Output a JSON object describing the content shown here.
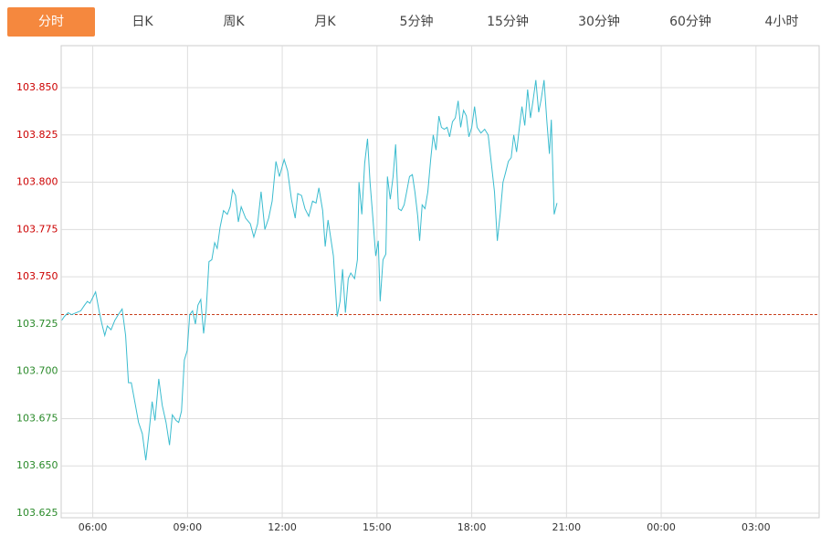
{
  "tabs": [
    "分时",
    "日K",
    "周K",
    "月K",
    "5分钟",
    "15分钟",
    "30分钟",
    "60分钟",
    "4小时"
  ],
  "active_tab": 0,
  "chart_data": {
    "type": "line",
    "color": "#3bbccf",
    "reference_line": 103.73,
    "reference_color": "#c8401e",
    "up_color": "#cc0000",
    "down_color": "#2a8a2a",
    "grid": true,
    "xlim": [
      5,
      29
    ],
    "ylim": [
      103.6226,
      103.8722
    ],
    "yticks": [
      {
        "value": 103.625,
        "label": "103.625"
      },
      {
        "value": 103.65,
        "label": "103.650"
      },
      {
        "value": 103.675,
        "label": "103.675"
      },
      {
        "value": 103.7,
        "label": "103.700"
      },
      {
        "value": 103.725,
        "label": "103.725"
      },
      {
        "value": 103.75,
        "label": "103.750"
      },
      {
        "value": 103.775,
        "label": "103.775"
      },
      {
        "value": 103.8,
        "label": "103.800"
      },
      {
        "value": 103.825,
        "label": "103.825"
      },
      {
        "value": 103.85,
        "label": "103.850"
      }
    ],
    "xticks": [
      {
        "value": 6,
        "label": "06:00"
      },
      {
        "value": 9,
        "label": "09:00"
      },
      {
        "value": 12,
        "label": "12:00"
      },
      {
        "value": 15,
        "label": "15:00"
      },
      {
        "value": 18,
        "label": "18:00"
      },
      {
        "value": 21,
        "label": "21:00"
      },
      {
        "value": 24,
        "label": "00:00"
      },
      {
        "value": 27,
        "label": "03:00"
      }
    ],
    "x": [
      5.02,
      5.1,
      5.22,
      5.33,
      5.48,
      5.62,
      5.74,
      5.83,
      5.91,
      6.0,
      6.09,
      6.2,
      6.29,
      6.38,
      6.46,
      6.58,
      6.7,
      6.81,
      6.93,
      7.04,
      7.13,
      7.22,
      7.33,
      7.45,
      7.57,
      7.68,
      7.77,
      7.88,
      7.97,
      8.09,
      8.2,
      8.32,
      8.43,
      8.52,
      8.64,
      8.72,
      8.81,
      8.9,
      8.99,
      9.07,
      9.16,
      9.25,
      9.33,
      9.42,
      9.51,
      9.59,
      9.68,
      9.77,
      9.86,
      9.94,
      10.03,
      10.14,
      10.26,
      10.35,
      10.43,
      10.52,
      10.61,
      10.7,
      10.84,
      10.99,
      11.1,
      11.22,
      11.33,
      11.45,
      11.57,
      11.68,
      11.8,
      11.91,
      12.06,
      12.17,
      12.29,
      12.41,
      12.49,
      12.61,
      12.72,
      12.84,
      12.96,
      13.07,
      13.16,
      13.28,
      13.36,
      13.45,
      13.54,
      13.62,
      13.74,
      13.83,
      13.91,
      14.0,
      14.09,
      14.17,
      14.29,
      14.38,
      14.43,
      14.52,
      14.61,
      14.7,
      14.78,
      14.87,
      14.96,
      15.04,
      15.1,
      15.19,
      15.28,
      15.33,
      15.42,
      15.51,
      15.59,
      15.68,
      15.77,
      15.86,
      15.94,
      16.03,
      16.12,
      16.2,
      16.29,
      16.35,
      16.43,
      16.52,
      16.61,
      16.7,
      16.78,
      16.87,
      16.96,
      17.04,
      17.13,
      17.22,
      17.3,
      17.39,
      17.48,
      17.57,
      17.65,
      17.74,
      17.83,
      17.91,
      18.0,
      18.09,
      18.17,
      18.29,
      18.41,
      18.52,
      18.64,
      18.72,
      18.81,
      18.9,
      18.99,
      19.07,
      19.16,
      19.25,
      19.33,
      19.42,
      19.51,
      19.59,
      19.68,
      19.77,
      19.86,
      19.94,
      20.03,
      20.12,
      20.2,
      20.29,
      20.38,
      20.46,
      20.52,
      20.61,
      20.7
    ],
    "values": [
      103.727,
      103.729,
      103.731,
      103.73,
      103.731,
      103.732,
      103.735,
      103.737,
      103.736,
      103.739,
      103.742,
      103.732,
      103.725,
      103.719,
      103.724,
      103.722,
      103.727,
      103.73,
      103.733,
      103.719,
      103.694,
      103.694,
      103.684,
      103.673,
      103.667,
      103.653,
      103.666,
      103.684,
      103.674,
      103.696,
      103.682,
      103.673,
      103.661,
      103.677,
      103.674,
      103.673,
      103.679,
      103.706,
      103.711,
      103.73,
      103.732,
      103.725,
      103.735,
      103.738,
      103.72,
      103.732,
      103.758,
      103.759,
      103.768,
      103.765,
      103.776,
      103.785,
      103.783,
      103.787,
      103.796,
      103.793,
      103.779,
      103.787,
      103.781,
      103.778,
      103.771,
      103.778,
      103.795,
      103.775,
      103.781,
      103.79,
      103.811,
      103.803,
      103.812,
      103.806,
      103.791,
      103.781,
      103.794,
      103.793,
      103.786,
      103.782,
      103.79,
      103.789,
      103.797,
      103.785,
      103.766,
      103.78,
      103.77,
      103.761,
      103.729,
      103.737,
      103.754,
      103.731,
      103.749,
      103.752,
      103.749,
      103.759,
      103.8,
      103.783,
      103.81,
      103.823,
      103.8,
      103.781,
      103.761,
      103.769,
      103.737,
      103.759,
      103.762,
      103.803,
      103.791,
      103.803,
      103.82,
      103.786,
      103.785,
      103.788,
      103.795,
      103.803,
      103.804,
      103.795,
      103.782,
      103.769,
      103.788,
      103.786,
      103.795,
      103.812,
      103.825,
      103.817,
      103.835,
      103.829,
      103.828,
      103.829,
      103.824,
      103.832,
      103.834,
      103.843,
      103.829,
      103.838,
      103.835,
      103.824,
      103.829,
      103.84,
      103.829,
      103.826,
      103.828,
      103.825,
      103.807,
      103.795,
      103.769,
      103.783,
      103.8,
      103.805,
      103.811,
      103.813,
      103.825,
      103.816,
      103.829,
      103.84,
      103.83,
      103.849,
      103.834,
      103.843,
      103.854,
      103.837,
      103.844,
      103.854,
      103.832,
      103.815,
      103.833,
      103.783,
      103.789
    ]
  }
}
